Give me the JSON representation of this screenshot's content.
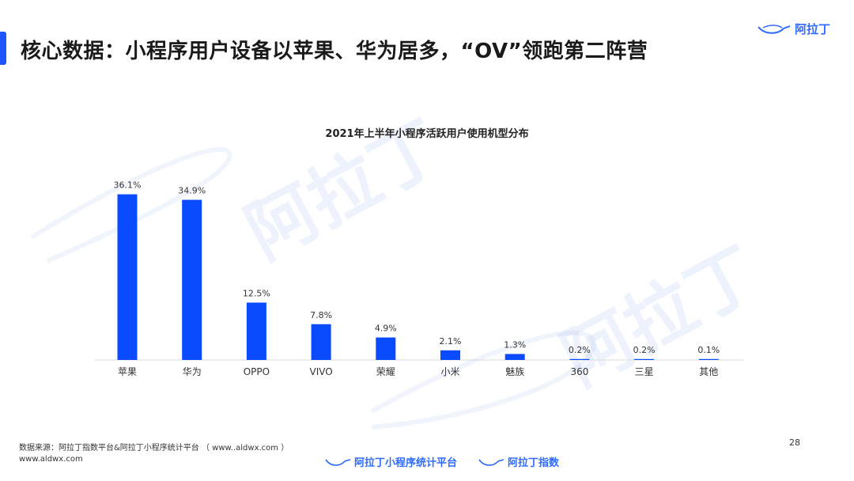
{
  "header": {
    "title": "核心数据：小程序用户设备以苹果、华为居多，“OV”领跑第二阵营",
    "brand": "阿拉丁",
    "brand_icon": "lamp-icon",
    "accent_color": "#1f55ff"
  },
  "watermark": {
    "text": "阿拉丁"
  },
  "chart_data": {
    "type": "bar",
    "title": "2021年上半年小程序活跃用户使用机型分布",
    "categories": [
      "苹果",
      "华为",
      "OPPO",
      "VIVO",
      "荣耀",
      "小米",
      "魅族",
      "360",
      "三星",
      "其他"
    ],
    "values": [
      36.1,
      34.9,
      12.5,
      7.8,
      4.9,
      2.1,
      1.3,
      0.2,
      0.2,
      0.1
    ],
    "value_labels": [
      "36.1%",
      "34.9%",
      "12.5%",
      "7.8%",
      "4.9%",
      "2.1%",
      "1.3%",
      "0.2%",
      "0.2%",
      "0.1%"
    ],
    "xlabel": "",
    "ylabel": "",
    "ylim": [
      0,
      40
    ],
    "grid": false,
    "bar_color": "#0a4bff"
  },
  "footer": {
    "source": "数据来源：阿拉丁指数平台&阿拉丁小程序统计平台 （ www..aldwx.com ）",
    "url": "www.aldwx.com",
    "page_number": "28",
    "link1": "阿拉丁小程序统计平台",
    "link2": "阿拉丁指数"
  }
}
